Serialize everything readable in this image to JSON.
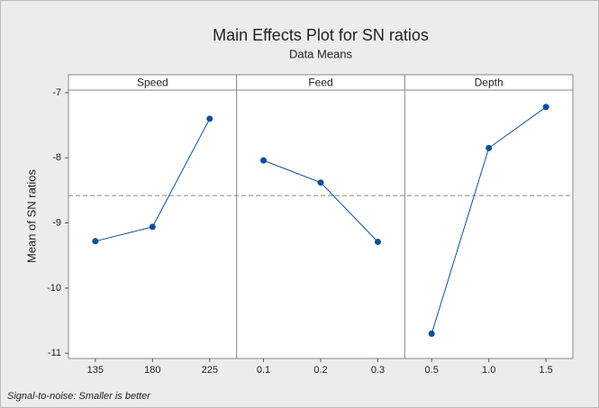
{
  "chart_data": {
    "type": "line",
    "title": "Main Effects Plot for SN ratios",
    "subtitle": "Data Means",
    "y_label": "Mean of SN ratios",
    "footnote": "Signal-to-noise: Smaller is better",
    "color": "#0b4f9c",
    "reference_line": -8.58,
    "ylim": [
      -11.08,
      -6.96
    ],
    "yticks": [
      -11,
      -10,
      -9,
      -8,
      -7
    ],
    "panels": [
      {
        "name": "Speed",
        "categories": [
          "135",
          "180",
          "225"
        ],
        "values": [
          -9.28,
          -9.06,
          -7.4
        ]
      },
      {
        "name": "Feed",
        "categories": [
          "0.1",
          "0.2",
          "0.3"
        ],
        "values": [
          -8.04,
          -8.38,
          -9.29
        ]
      },
      {
        "name": "Depth",
        "categories": [
          "0.5",
          "1.0",
          "1.5"
        ],
        "values": [
          -10.7,
          -7.85,
          -7.22
        ]
      }
    ]
  }
}
